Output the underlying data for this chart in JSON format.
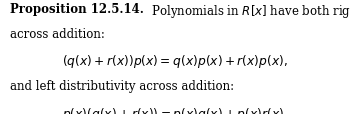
{
  "bg_color": "#ffffff",
  "text_color": "#000000",
  "font_size": 8.5,
  "font_size_eq": 8.8,
  "line1_bold": "Proposition 12.5.14.",
  "line1_normal": "  Polynomials in $R[x]$ have both right distributivity",
  "line2": "across addition:",
  "eq1": "$(q(x) + r(x))p(x) = q(x)p(x) + r(x)p(x),$",
  "line3": "and left distributivity across addition:",
  "eq2": "$p(x)(q(x) + r(x)) = p(x)q(x) + p(x)r(x).$",
  "fig_width": 3.5,
  "fig_height": 1.15,
  "dpi": 100
}
